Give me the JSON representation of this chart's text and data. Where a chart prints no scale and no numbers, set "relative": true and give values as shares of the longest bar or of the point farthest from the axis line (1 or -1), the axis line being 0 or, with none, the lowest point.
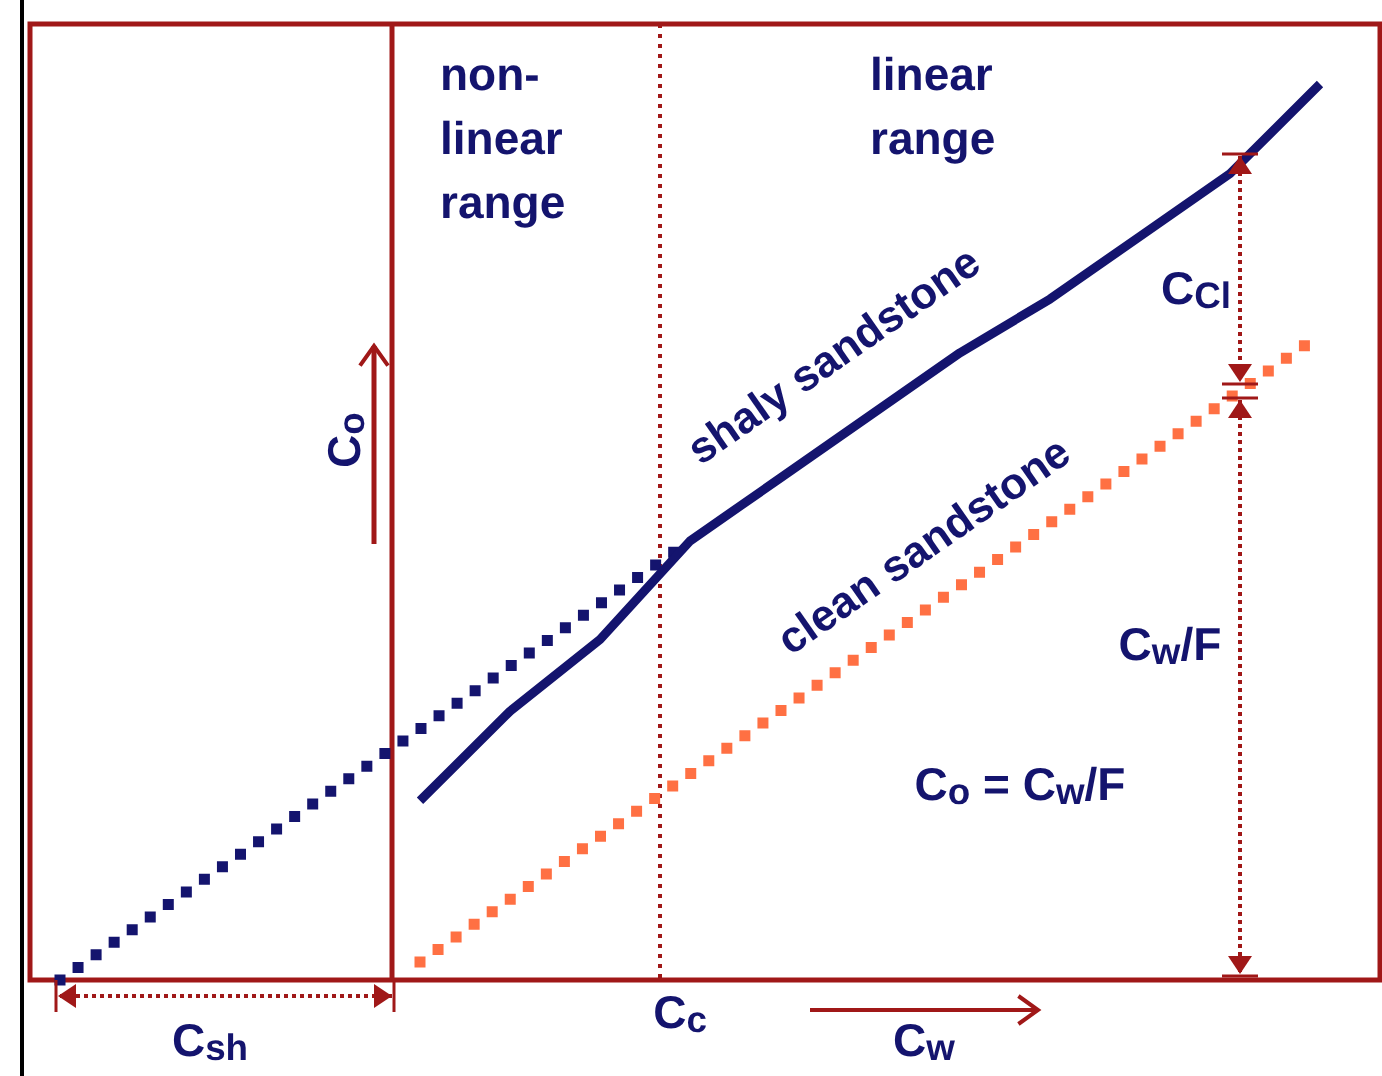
{
  "chart_data": {
    "type": "line",
    "relative": true,
    "legend": false,
    "grid": false,
    "marker": "none",
    "categories": [
      null,
      null,
      null,
      null,
      null,
      null,
      null,
      null,
      null,
      null,
      null,
      null,
      null,
      null,
      null
    ],
    "series": [
      {
        "color": "#14146e",
        "line_style": "dotted",
        "values": [
          0,
          0.07,
          0.14,
          0.21,
          0.28,
          0.35,
          0.42,
          0.49,
          null,
          null,
          null,
          null,
          null,
          null,
          null
        ]
      },
      {
        "name": "shaly sandstone",
        "color": "#14146e",
        "line_style": "solid",
        "values": [
          null,
          null,
          null,
          null,
          0.2,
          0.3,
          0.38,
          0.49,
          0.56,
          0.63,
          0.7,
          0.76,
          0.83,
          0.9,
          1
        ]
      },
      {
        "name": "clean sandstone",
        "color": "#ff7043",
        "line_style": "dotted",
        "values": [
          null,
          null,
          null,
          null,
          0.02,
          0.09,
          0.16,
          0.23,
          0.3,
          0.37,
          0.44,
          0.51,
          0.58,
          0.65,
          0.72
        ]
      }
    ],
    "annotations": [
      "non-linear range",
      "linear range",
      "C$_{o}$",
      "C$_{Cl}$",
      "C$_{w}$/F",
      "C$_{o}$ = C$_{w}$/F",
      "C$_{sh}$",
      "C$_{c}$",
      "C$_{w}$"
    ]
  }
}
